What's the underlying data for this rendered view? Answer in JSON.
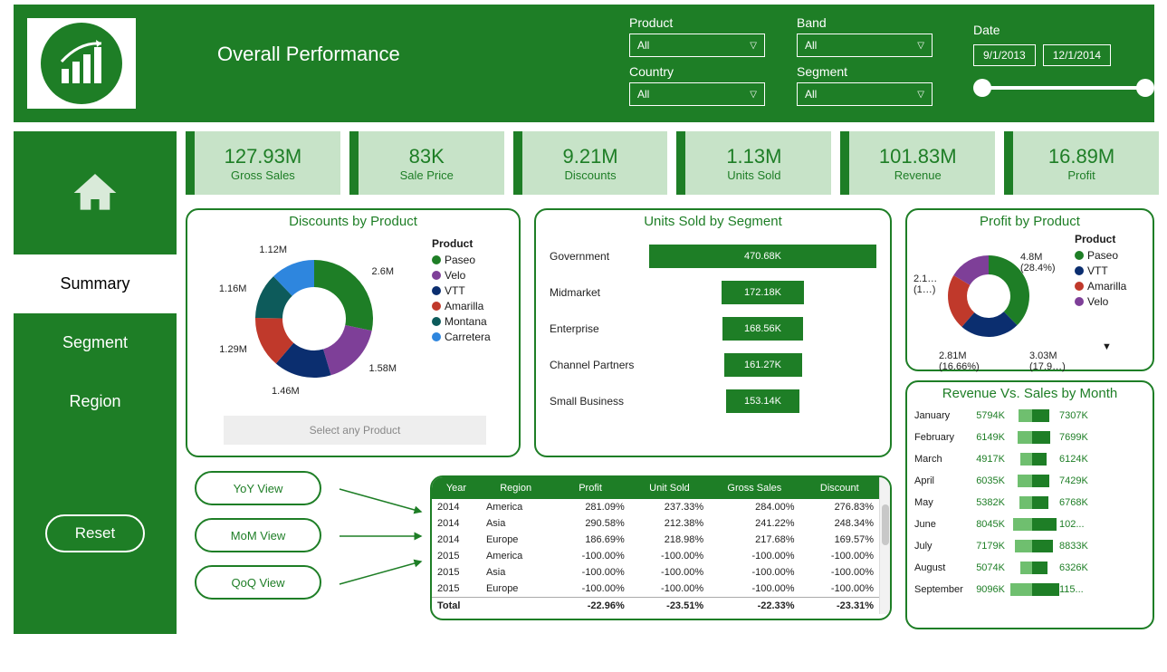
{
  "header": {
    "title": "Overall Performance",
    "filters": {
      "product": {
        "label": "Product",
        "value": "All"
      },
      "band": {
        "label": "Band",
        "value": "All"
      },
      "country": {
        "label": "Country",
        "value": "All"
      },
      "segment": {
        "label": "Segment",
        "value": "All"
      }
    },
    "date": {
      "label": "Date",
      "from": "9/1/2013",
      "to": "12/1/2014"
    }
  },
  "sidebar": {
    "items": [
      "Summary",
      "Segment",
      "Region"
    ],
    "active_index": 0,
    "reset_label": "Reset"
  },
  "kpis": [
    {
      "value": "127.93M",
      "label": "Gross Sales"
    },
    {
      "value": "83K",
      "label": "Sale Price"
    },
    {
      "value": "9.21M",
      "label": "Discounts"
    },
    {
      "value": "1.13M",
      "label": "Units Sold"
    },
    {
      "value": "101.83M",
      "label": "Revenue"
    },
    {
      "value": "16.89M",
      "label": "Profit"
    }
  ],
  "discounts_chart": {
    "title": "Discounts by Product",
    "type": "donut",
    "legend_title": "Product",
    "items": [
      {
        "name": "Paseo",
        "value": "2.6M",
        "num": 2.6,
        "color": "#1e7e26"
      },
      {
        "name": "Velo",
        "value": "1.58M",
        "num": 1.58,
        "color": "#7e3f98"
      },
      {
        "name": "VTT",
        "value": "1.46M",
        "num": 1.46,
        "color": "#0b2e6f"
      },
      {
        "name": "Amarilla",
        "value": "1.29M",
        "num": 1.29,
        "color": "#c0392b"
      },
      {
        "name": "Montana",
        "value": "1.16M",
        "num": 1.16,
        "color": "#0d5b5b"
      },
      {
        "name": "Carretera",
        "value": "1.12M",
        "num": 1.12,
        "color": "#2e86de"
      }
    ],
    "select_placeholder": "Select any Product"
  },
  "units_chart": {
    "title": "Units Sold by Segment",
    "type": "bar",
    "bar_color": "#1e7e26",
    "max": 470.68,
    "items": [
      {
        "name": "Government",
        "value": "470.68K",
        "num": 470.68
      },
      {
        "name": "Midmarket",
        "value": "172.18K",
        "num": 172.18
      },
      {
        "name": "Enterprise",
        "value": "168.56K",
        "num": 168.56
      },
      {
        "name": "Channel Partners",
        "value": "161.27K",
        "num": 161.27
      },
      {
        "name": "Small Business",
        "value": "153.14K",
        "num": 153.14
      }
    ]
  },
  "profit_chart": {
    "title": "Profit by Product",
    "type": "donut",
    "legend_title": "Product",
    "items": [
      {
        "name": "Paseo",
        "label": "4.8M",
        "sub": "(28.4%)",
        "num": 4.8,
        "color": "#1e7e26"
      },
      {
        "name": "VTT",
        "label": "3.03M",
        "sub": "(17.9…)",
        "num": 3.03,
        "color": "#0b2e6f"
      },
      {
        "name": "Amarilla",
        "label": "2.81M",
        "sub": "(16.66%)",
        "num": 2.81,
        "color": "#c0392b"
      },
      {
        "name": "Velo",
        "label": "2.1…",
        "sub": "(1…)",
        "num": 2.1,
        "color": "#7e3f98"
      }
    ],
    "legend_more": "▼"
  },
  "views": {
    "buttons": [
      "YoY View",
      "MoM View",
      "QoQ View"
    ]
  },
  "table": {
    "type": "table",
    "columns": [
      "Year",
      "Region",
      "Profit",
      "Unit Sold",
      "Gross Sales",
      "Discount"
    ],
    "rows": [
      {
        "year": "2014",
        "region": "America",
        "profit": "281.09%",
        "unit": "237.33%",
        "gross": "284.00%",
        "disc": "276.83%",
        "neg": false
      },
      {
        "year": "2014",
        "region": "Asia",
        "profit": "290.58%",
        "unit": "212.38%",
        "gross": "241.22%",
        "disc": "248.34%",
        "neg": false
      },
      {
        "year": "2014",
        "region": "Europe",
        "profit": "186.69%",
        "unit": "218.98%",
        "gross": "217.68%",
        "disc": "169.57%",
        "neg": false
      },
      {
        "year": "2015",
        "region": "America",
        "profit": "-100.00%",
        "unit": "-100.00%",
        "gross": "-100.00%",
        "disc": "-100.00%",
        "neg": true
      },
      {
        "year": "2015",
        "region": "Asia",
        "profit": "-100.00%",
        "unit": "-100.00%",
        "gross": "-100.00%",
        "disc": "-100.00%",
        "neg": true
      },
      {
        "year": "2015",
        "region": "Europe",
        "profit": "-100.00%",
        "unit": "-100.00%",
        "gross": "-100.00%",
        "disc": "-100.00%",
        "neg": true
      }
    ],
    "total": {
      "label": "Total",
      "profit": "-22.96%",
      "unit": "-23.51%",
      "gross": "-22.33%",
      "disc": "-23.31%"
    }
  },
  "revenue_chart": {
    "title": "Revenue Vs. Sales by Month",
    "type": "tornado",
    "left_color": "#6fbf6f",
    "right_color": "#1e7e26",
    "max": 11500,
    "items": [
      {
        "month": "January",
        "left": "5794K",
        "ln": 5794,
        "right": "7307K",
        "rn": 7307
      },
      {
        "month": "February",
        "left": "6149K",
        "ln": 6149,
        "right": "7699K",
        "rn": 7699
      },
      {
        "month": "March",
        "left": "4917K",
        "ln": 4917,
        "right": "6124K",
        "rn": 6124
      },
      {
        "month": "April",
        "left": "6035K",
        "ln": 6035,
        "right": "7429K",
        "rn": 7429
      },
      {
        "month": "May",
        "left": "5382K",
        "ln": 5382,
        "right": "6768K",
        "rn": 6768
      },
      {
        "month": "June",
        "left": "8045K",
        "ln": 8045,
        "right": "102...",
        "rn": 10200
      },
      {
        "month": "July",
        "left": "7179K",
        "ln": 7179,
        "right": "8833K",
        "rn": 8833
      },
      {
        "month": "August",
        "left": "5074K",
        "ln": 5074,
        "right": "6326K",
        "rn": 6326
      },
      {
        "month": "September",
        "left": "9096K",
        "ln": 9096,
        "right": "115...",
        "rn": 11500
      }
    ]
  }
}
